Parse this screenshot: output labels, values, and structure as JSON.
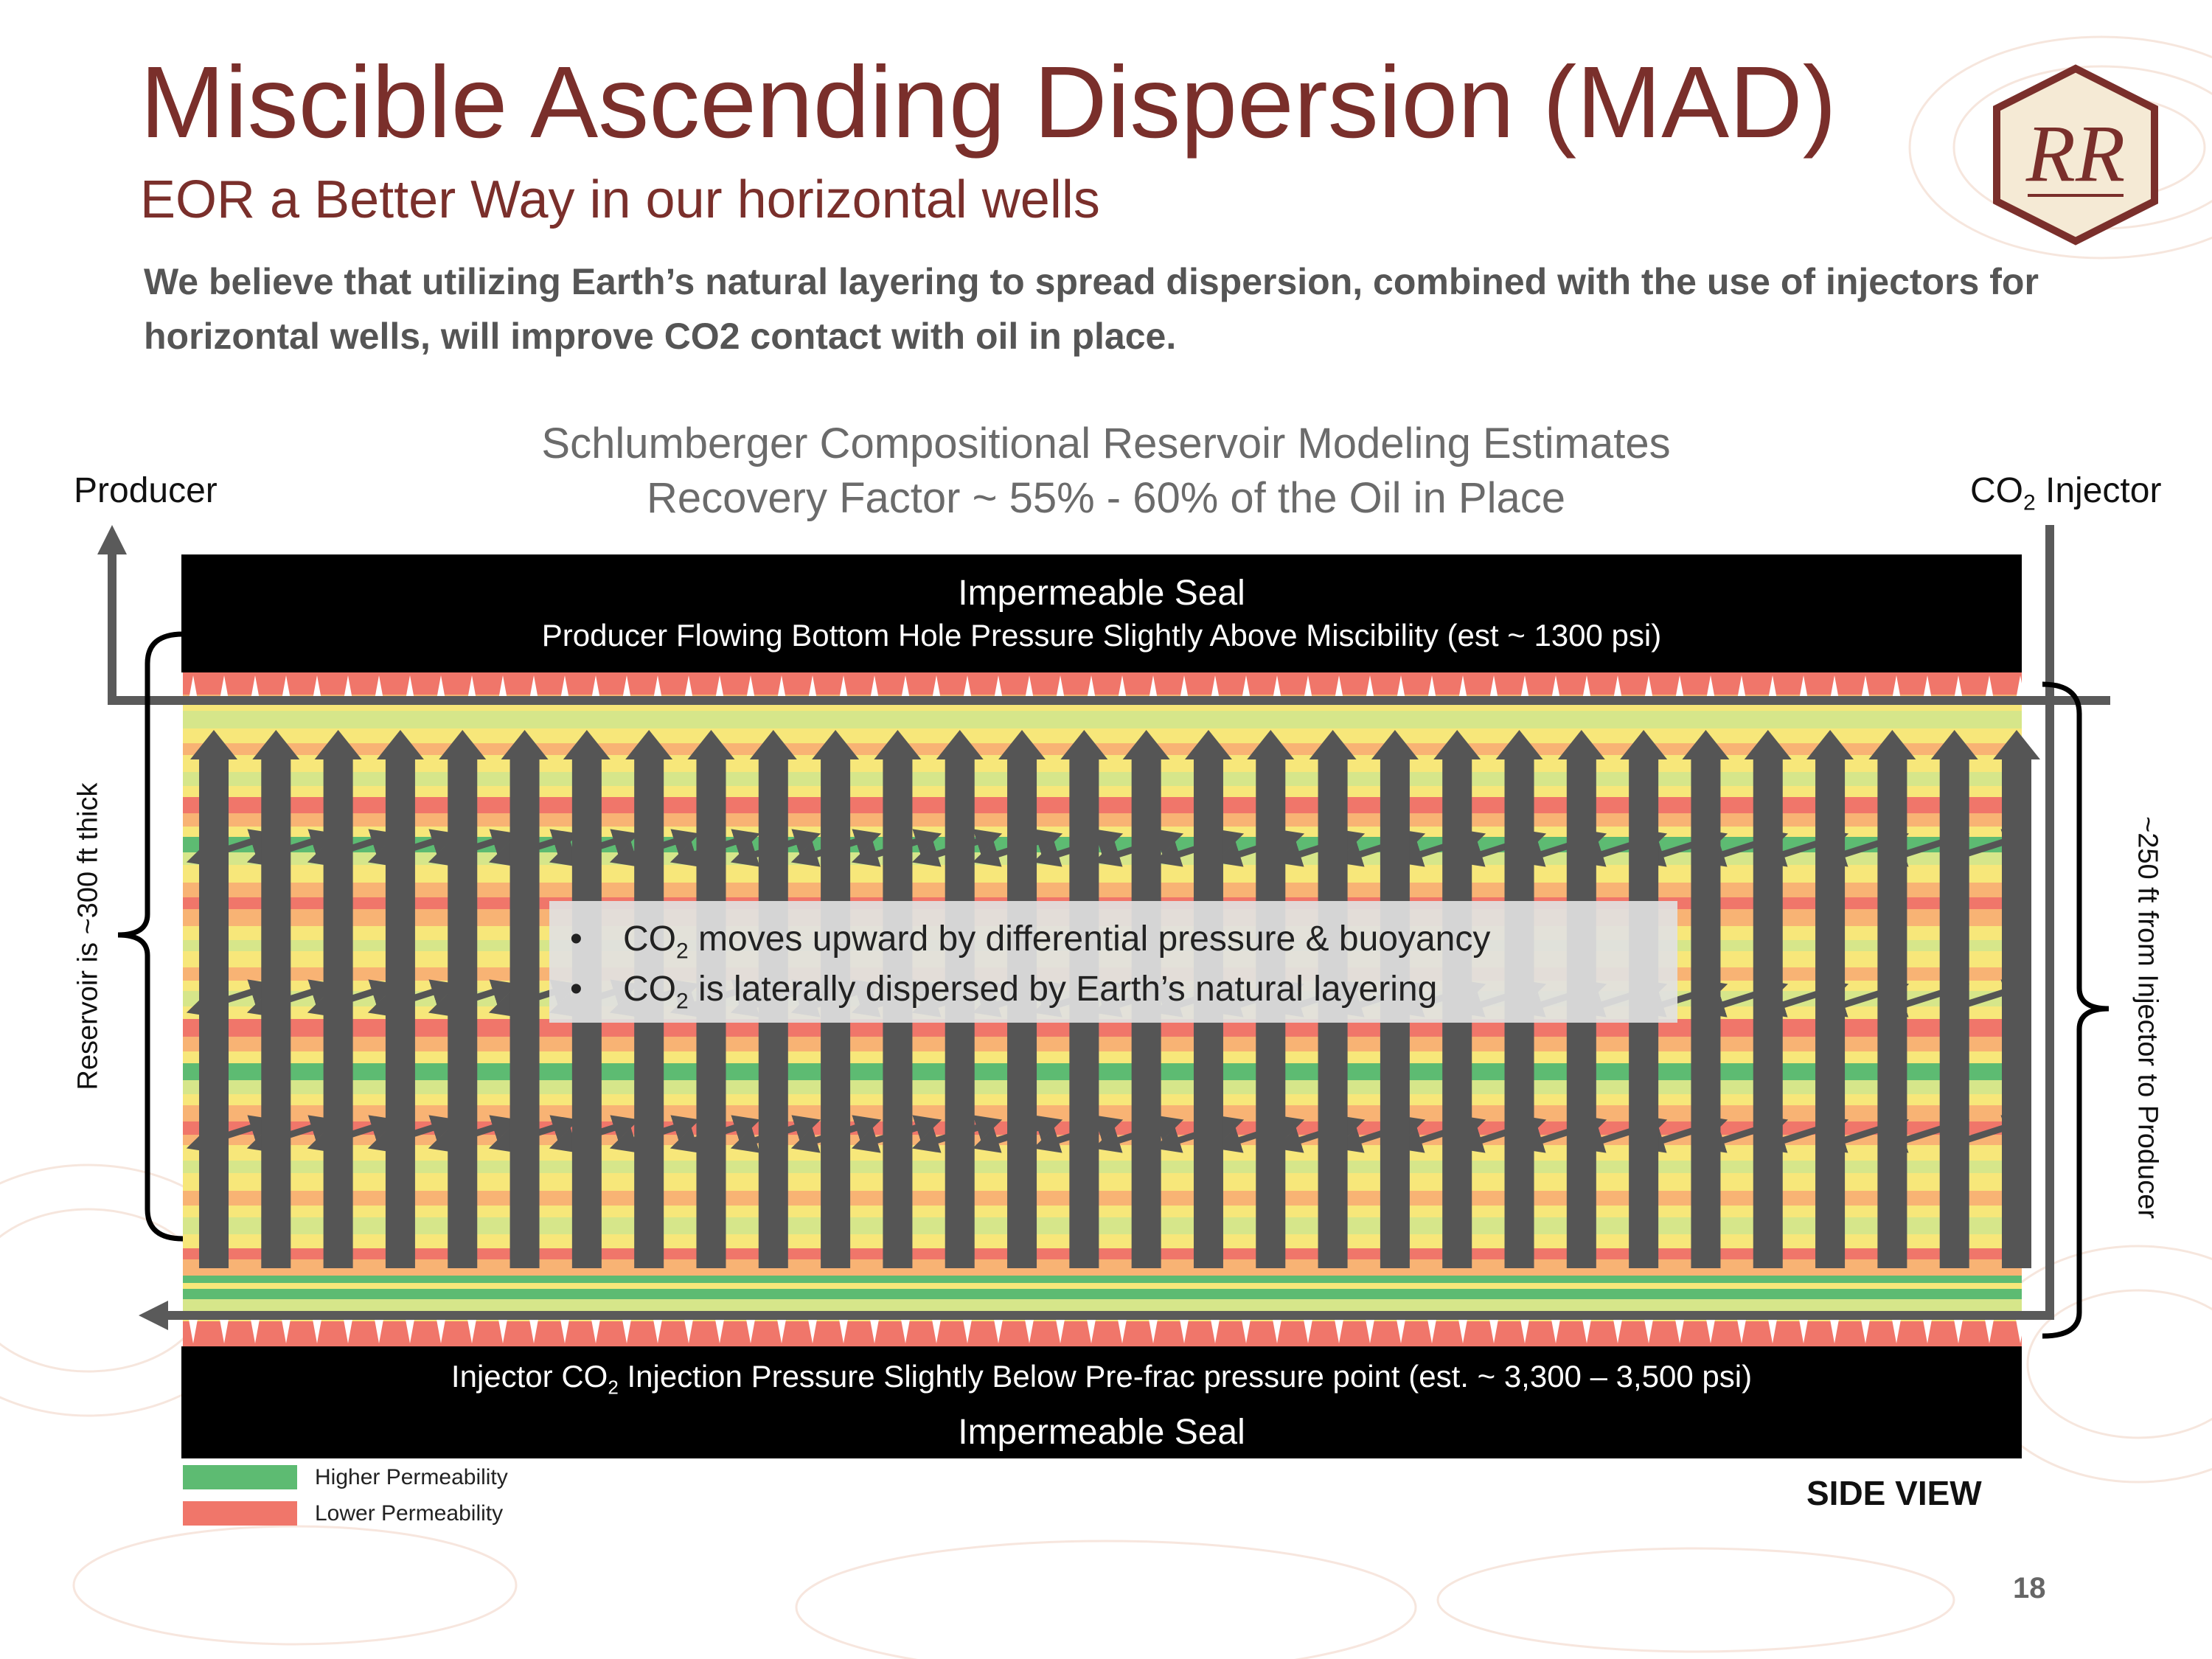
{
  "slide": {
    "title": "Miscible Ascending Dispersion (MAD)",
    "subtitle": "EOR a Better Way in our horizontal wells",
    "intro": "We believe that utilizing Earth’s natural layering to spread dispersion, combined with the use of injectors for horizontal wells, will improve CO2 contact with oil in place.",
    "page_number": "18",
    "logo_letters": "RR"
  },
  "diagram": {
    "model_line1": "Schlumberger Compositional Reservoir Modeling  Estimates",
    "model_line2": "Recovery Factor ~ 55% - 60% of the Oil in Place",
    "producer_label": "Producer",
    "injector_label_prefix": "CO",
    "injector_label_sub": "2",
    "injector_label_suffix": " Injector",
    "top_seal_title": "Impermeable Seal",
    "top_seal_note": "Producer Flowing Bottom Hole Pressure Slightly Above Miscibility (est ~ 1300 psi)",
    "bottom_seal_note_prefix": "Injector CO",
    "bottom_seal_note_sub": "2",
    "bottom_seal_note_suffix": " Injection Pressure Slightly Below Pre-frac pressure point (est. ~ 3,300 – 3,500 psi)",
    "bottom_seal_title": "Impermeable Seal",
    "bullets": [
      {
        "prefix": "CO",
        "sub": "2",
        "text": " moves upward by differential pressure & buoyancy"
      },
      {
        "prefix": "CO",
        "sub": "2",
        "text": " is laterally dispersed by Earth’s natural layering"
      }
    ],
    "bullet_char": "•",
    "left_vertical_label": "Reservoir is ~300 ft thick",
    "right_vertical_label": "~250 ft from Injector to Producer",
    "legend": [
      {
        "label": "Higher Permeability",
        "color": "#5dbb72"
      },
      {
        "label": "Lower Permeability",
        "color": "#f0766a"
      }
    ],
    "side_view_label": "SIDE VIEW",
    "colors": {
      "brand": "#7a2f2b",
      "arrow": "#555555",
      "seal": "#000000",
      "higher_perm": "#5dbb72",
      "lower_perm": "#f0766a",
      "mid_yellow": "#f7e77a",
      "mid_orange": "#f8b374",
      "mid_lightgreen": "#d6e68a"
    },
    "icons": [
      "well-pipe-arrow-icon",
      "upward-flow-arrow-icon",
      "lateral-double-arrow-icon",
      "company-logo-icon"
    ]
  }
}
